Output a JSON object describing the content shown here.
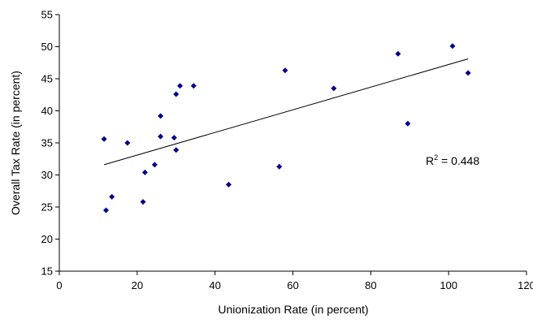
{
  "chart_data": {
    "type": "scatter",
    "title": "",
    "xlabel": "Unionization Rate (in percent)",
    "ylabel": "Overall Tax Rate (in percent)",
    "xlim": [
      0,
      120
    ],
    "ylim": [
      15,
      55
    ],
    "x_ticks": [
      "0",
      "20",
      "40",
      "60",
      "80",
      "100",
      "120"
    ],
    "y_ticks": [
      "15",
      "20",
      "25",
      "30",
      "35",
      "40",
      "45",
      "50",
      "55"
    ],
    "grid": false,
    "legend": "none",
    "point_color": "#00008B",
    "series": [
      {
        "points": [
          {
            "x": 11.5,
            "y": 35.6
          },
          {
            "x": 12,
            "y": 24.5
          },
          {
            "x": 13.5,
            "y": 26.6
          },
          {
            "x": 17.5,
            "y": 35.0
          },
          {
            "x": 21.5,
            "y": 25.8
          },
          {
            "x": 22,
            "y": 30.4
          },
          {
            "x": 24.5,
            "y": 31.6
          },
          {
            "x": 26,
            "y": 39.2
          },
          {
            "x": 26,
            "y": 36.0
          },
          {
            "x": 29.5,
            "y": 35.8
          },
          {
            "x": 30,
            "y": 42.6
          },
          {
            "x": 30,
            "y": 33.9
          },
          {
            "x": 31,
            "y": 43.9
          },
          {
            "x": 34.5,
            "y": 43.9
          },
          {
            "x": 43.5,
            "y": 28.5
          },
          {
            "x": 56.5,
            "y": 31.3
          },
          {
            "x": 58,
            "y": 46.3
          },
          {
            "x": 70.5,
            "y": 43.5
          },
          {
            "x": 87,
            "y": 48.9
          },
          {
            "x": 89.5,
            "y": 38.0
          },
          {
            "x": 101,
            "y": 50.1
          },
          {
            "x": 105,
            "y": 45.9
          }
        ]
      }
    ],
    "trendline": {
      "type": "linear",
      "x": [
        11.5,
        105
      ],
      "y": [
        31.6,
        48.1
      ],
      "color": "#000000"
    },
    "annotations": {
      "r2_prefix": "R",
      "r2_sup": "2",
      "r2_value": " = 0.448"
    }
  }
}
